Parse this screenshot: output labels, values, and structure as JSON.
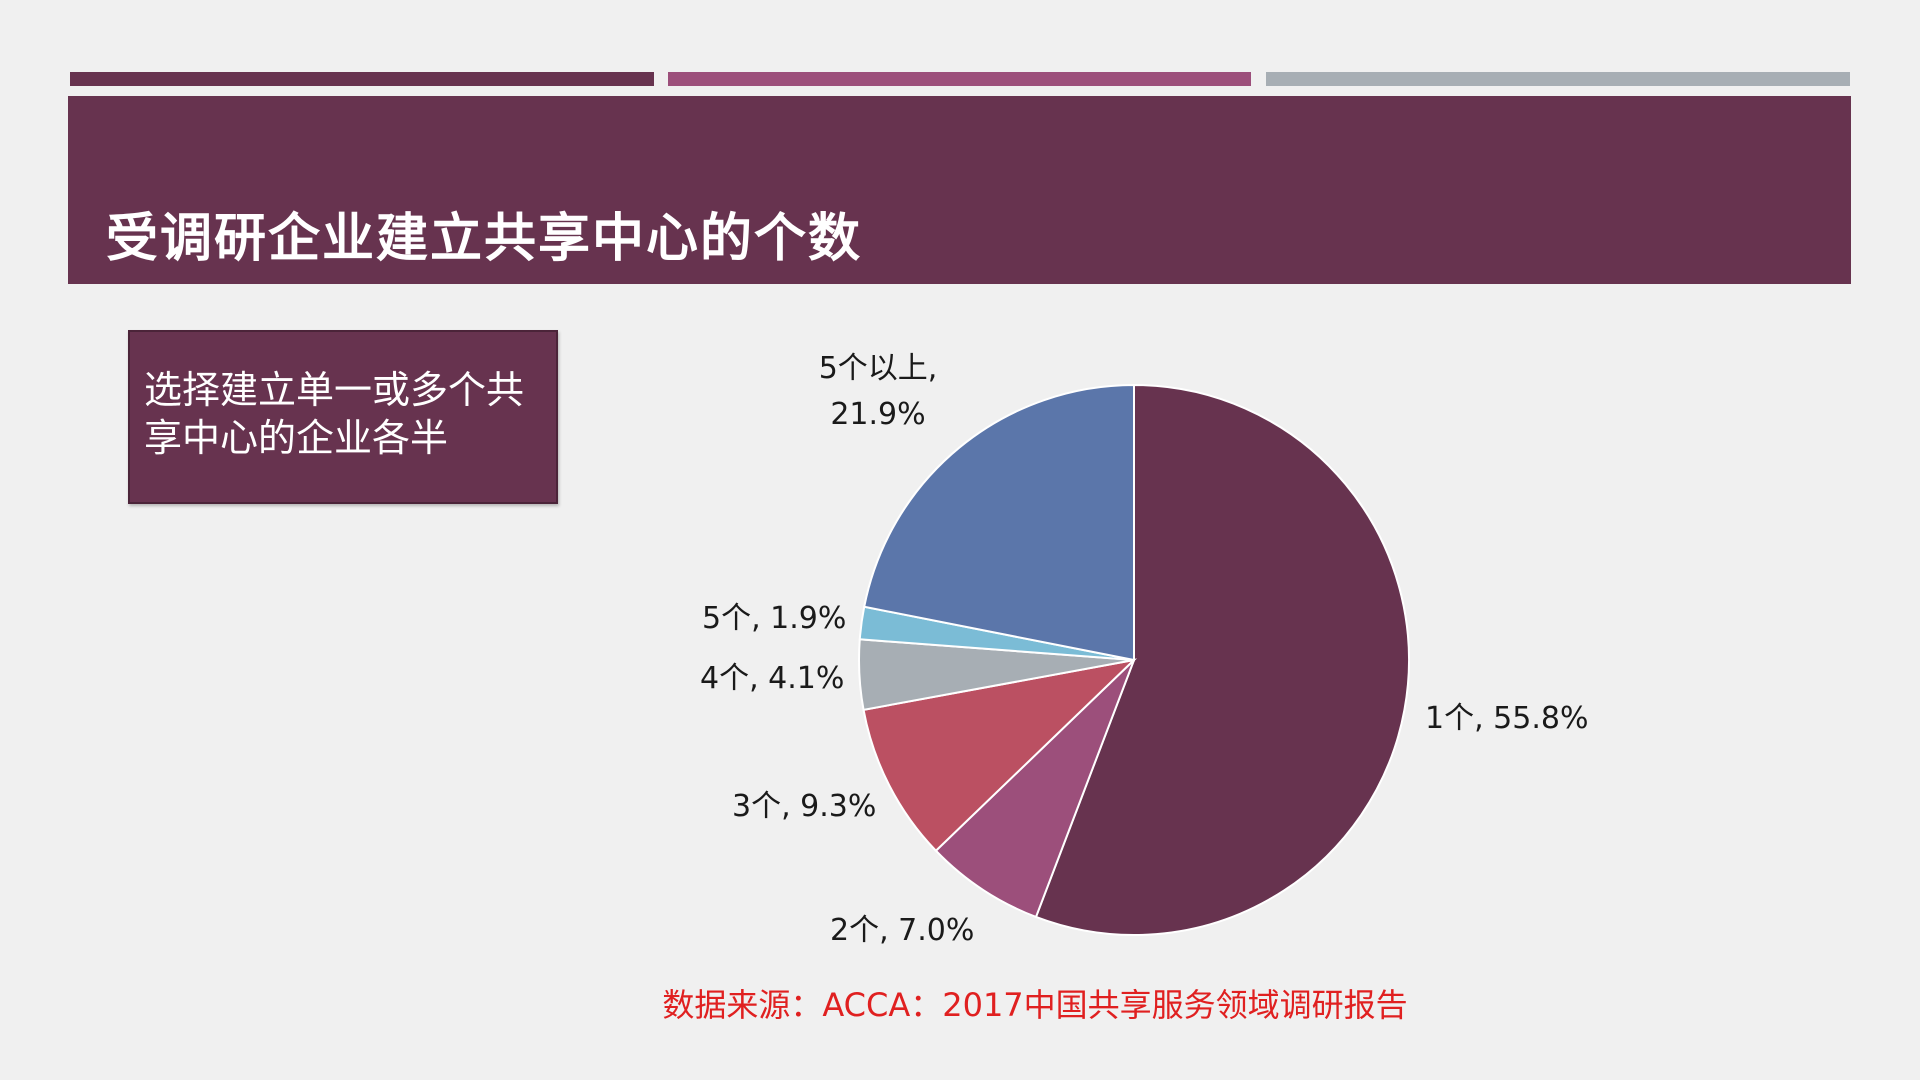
{
  "slide": {
    "title": "受调研企业建立共享中心的个数",
    "callout": "选择建立单一或多个共享中心的企业各半",
    "source": "数据来源：ACCA：2017中国共享服务领域调研报告",
    "accent_colors": [
      "#67334f",
      "#9c4f7b",
      "#a7aeb4"
    ]
  },
  "chart_data": {
    "type": "pie",
    "start_angle_deg": 0,
    "direction": "clockwise",
    "slices": [
      {
        "category": "1个",
        "value": 55.8,
        "label": "1个, 55.8%",
        "color": "#67334f"
      },
      {
        "category": "2个",
        "value": 7.0,
        "label": "2个, 7.0%",
        "color": "#9c4f7b"
      },
      {
        "category": "3个",
        "value": 9.3,
        "label": "3个, 9.3%",
        "color": "#bb5062"
      },
      {
        "category": "4个",
        "value": 4.1,
        "label": "4个, 4.1%",
        "color": "#a7aeb4"
      },
      {
        "category": "5个",
        "value": 1.9,
        "label": "5个, 1.9%",
        "color": "#7bbcd6"
      },
      {
        "category": "5个以上",
        "value": 21.9,
        "label_lines": [
          "5个以上,",
          "21.9%"
        ],
        "color": "#5b76aa"
      }
    ]
  }
}
